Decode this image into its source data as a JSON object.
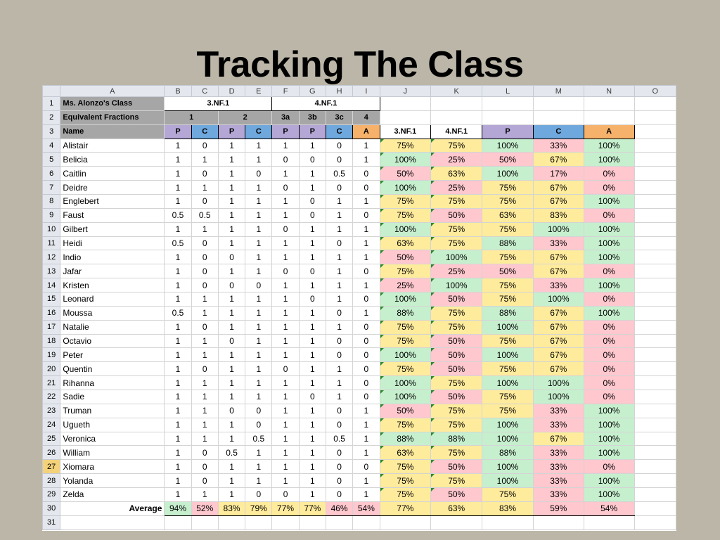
{
  "title": "Tracking The Class",
  "columns": [
    "A",
    "B",
    "C",
    "D",
    "E",
    "F",
    "G",
    "H",
    "I",
    "J",
    "K",
    "L",
    "M",
    "N",
    "O"
  ],
  "header": {
    "row1": {
      "num": "1",
      "class_name": "Ms. Alonzo's Class",
      "std1": "3.NF.1",
      "std2": "4.NF.1"
    },
    "row2": {
      "num": "2",
      "label": "Equivalent Fractions",
      "groups": [
        "1",
        "2",
        "3a",
        "3b",
        "3c",
        "4"
      ]
    },
    "row3": {
      "num": "3",
      "label": "Name",
      "tags": [
        "P",
        "C",
        "P",
        "C",
        "P",
        "P",
        "C",
        "A",
        "3.NF.1",
        "4.NF.1",
        "P",
        "C",
        "A"
      ]
    }
  },
  "colors": {
    "P": "#b4a7d6",
    "C": "#6fa8dc",
    "A": "#f6b26b",
    "green": "#c6efce",
    "yellow": "#ffeb9c",
    "red": "#ffc7ce"
  },
  "students": [
    {
      "num": "4",
      "name": "Alistair",
      "scores": [
        "1",
        "0",
        "1",
        "1",
        "1",
        "1",
        "0",
        "1"
      ],
      "pct": [
        "75%",
        "75%",
        "100%",
        "33%",
        "100%"
      ]
    },
    {
      "num": "5",
      "name": "Belicia",
      "scores": [
        "1",
        "1",
        "1",
        "1",
        "0",
        "0",
        "0",
        "1"
      ],
      "pct": [
        "100%",
        "25%",
        "50%",
        "67%",
        "100%"
      ]
    },
    {
      "num": "6",
      "name": "Caitlin",
      "scores": [
        "1",
        "0",
        "1",
        "0",
        "1",
        "1",
        "0.5",
        "0"
      ],
      "pct": [
        "50%",
        "63%",
        "100%",
        "17%",
        "0%"
      ]
    },
    {
      "num": "7",
      "name": "Deidre",
      "scores": [
        "1",
        "1",
        "1",
        "1",
        "0",
        "1",
        "0",
        "0"
      ],
      "pct": [
        "100%",
        "25%",
        "75%",
        "67%",
        "0%"
      ]
    },
    {
      "num": "8",
      "name": "Englebert",
      "scores": [
        "1",
        "0",
        "1",
        "1",
        "1",
        "0",
        "1",
        "1"
      ],
      "pct": [
        "75%",
        "75%",
        "75%",
        "67%",
        "100%"
      ]
    },
    {
      "num": "9",
      "name": "Faust",
      "scores": [
        "0.5",
        "0.5",
        "1",
        "1",
        "1",
        "0",
        "1",
        "0"
      ],
      "pct": [
        "75%",
        "50%",
        "63%",
        "83%",
        "0%"
      ]
    },
    {
      "num": "10",
      "name": "Gilbert",
      "scores": [
        "1",
        "1",
        "1",
        "1",
        "0",
        "1",
        "1",
        "1"
      ],
      "pct": [
        "100%",
        "75%",
        "75%",
        "100%",
        "100%"
      ]
    },
    {
      "num": "11",
      "name": "Heidi",
      "scores": [
        "0.5",
        "0",
        "1",
        "1",
        "1",
        "1",
        "0",
        "1"
      ],
      "pct": [
        "63%",
        "75%",
        "88%",
        "33%",
        "100%"
      ]
    },
    {
      "num": "12",
      "name": "Indio",
      "scores": [
        "1",
        "0",
        "0",
        "1",
        "1",
        "1",
        "1",
        "1"
      ],
      "pct": [
        "50%",
        "100%",
        "75%",
        "67%",
        "100%"
      ]
    },
    {
      "num": "13",
      "name": "Jafar",
      "scores": [
        "1",
        "0",
        "1",
        "1",
        "0",
        "0",
        "1",
        "0"
      ],
      "pct": [
        "75%",
        "25%",
        "50%",
        "67%",
        "0%"
      ]
    },
    {
      "num": "14",
      "name": "Kristen",
      "scores": [
        "1",
        "0",
        "0",
        "0",
        "1",
        "1",
        "1",
        "1"
      ],
      "pct": [
        "25%",
        "100%",
        "75%",
        "33%",
        "100%"
      ]
    },
    {
      "num": "15",
      "name": "Leonard",
      "scores": [
        "1",
        "1",
        "1",
        "1",
        "1",
        "0",
        "1",
        "0"
      ],
      "pct": [
        "100%",
        "50%",
        "75%",
        "100%",
        "0%"
      ]
    },
    {
      "num": "16",
      "name": "Moussa",
      "scores": [
        "0.5",
        "1",
        "1",
        "1",
        "1",
        "1",
        "0",
        "1"
      ],
      "pct": [
        "88%",
        "75%",
        "88%",
        "67%",
        "100%"
      ]
    },
    {
      "num": "17",
      "name": "Natalie",
      "scores": [
        "1",
        "0",
        "1",
        "1",
        "1",
        "1",
        "1",
        "0"
      ],
      "pct": [
        "75%",
        "75%",
        "100%",
        "67%",
        "0%"
      ]
    },
    {
      "num": "18",
      "name": "Octavio",
      "scores": [
        "1",
        "1",
        "0",
        "1",
        "1",
        "1",
        "0",
        "0"
      ],
      "pct": [
        "75%",
        "50%",
        "75%",
        "67%",
        "0%"
      ]
    },
    {
      "num": "19",
      "name": "Peter",
      "scores": [
        "1",
        "1",
        "1",
        "1",
        "1",
        "1",
        "0",
        "0"
      ],
      "pct": [
        "100%",
        "50%",
        "100%",
        "67%",
        "0%"
      ]
    },
    {
      "num": "20",
      "name": "Quentin",
      "scores": [
        "1",
        "0",
        "1",
        "1",
        "0",
        "1",
        "1",
        "0"
      ],
      "pct": [
        "75%",
        "50%",
        "75%",
        "67%",
        "0%"
      ]
    },
    {
      "num": "21",
      "name": "Rihanna",
      "scores": [
        "1",
        "1",
        "1",
        "1",
        "1",
        "1",
        "1",
        "0"
      ],
      "pct": [
        "100%",
        "75%",
        "100%",
        "100%",
        "0%"
      ]
    },
    {
      "num": "22",
      "name": "Sadie",
      "scores": [
        "1",
        "1",
        "1",
        "1",
        "1",
        "0",
        "1",
        "0"
      ],
      "pct": [
        "100%",
        "50%",
        "75%",
        "100%",
        "0%"
      ]
    },
    {
      "num": "23",
      "name": "Truman",
      "scores": [
        "1",
        "1",
        "0",
        "0",
        "1",
        "1",
        "0",
        "1"
      ],
      "pct": [
        "50%",
        "75%",
        "75%",
        "33%",
        "100%"
      ]
    },
    {
      "num": "24",
      "name": "Ugueth",
      "scores": [
        "1",
        "1",
        "1",
        "0",
        "1",
        "1",
        "0",
        "1"
      ],
      "pct": [
        "75%",
        "75%",
        "100%",
        "33%",
        "100%"
      ]
    },
    {
      "num": "25",
      "name": "Veronica",
      "scores": [
        "1",
        "1",
        "1",
        "0.5",
        "1",
        "1",
        "0.5",
        "1"
      ],
      "pct": [
        "88%",
        "88%",
        "100%",
        "67%",
        "100%"
      ]
    },
    {
      "num": "26",
      "name": "William",
      "scores": [
        "1",
        "0",
        "0.5",
        "1",
        "1",
        "1",
        "0",
        "1"
      ],
      "pct": [
        "63%",
        "75%",
        "88%",
        "33%",
        "100%"
      ]
    },
    {
      "num": "27",
      "name": "Xiomara",
      "scores": [
        "1",
        "0",
        "1",
        "1",
        "1",
        "1",
        "0",
        "0"
      ],
      "pct": [
        "75%",
        "50%",
        "100%",
        "33%",
        "0%"
      ]
    },
    {
      "num": "28",
      "name": "Yolanda",
      "scores": [
        "1",
        "0",
        "1",
        "1",
        "1",
        "1",
        "0",
        "1"
      ],
      "pct": [
        "75%",
        "75%",
        "100%",
        "33%",
        "100%"
      ]
    },
    {
      "num": "29",
      "name": "Zelda",
      "scores": [
        "1",
        "1",
        "1",
        "0",
        "0",
        "1",
        "0",
        "1"
      ],
      "pct": [
        "75%",
        "50%",
        "75%",
        "33%",
        "100%"
      ]
    }
  ],
  "selected_row": "27",
  "average": {
    "num": "30",
    "label": "Average",
    "scores": [
      "94%",
      "52%",
      "83%",
      "79%",
      "77%",
      "77%",
      "46%",
      "54%"
    ],
    "pct": [
      "77%",
      "63%",
      "83%",
      "59%",
      "54%"
    ]
  },
  "blank_row": {
    "num": "31"
  }
}
